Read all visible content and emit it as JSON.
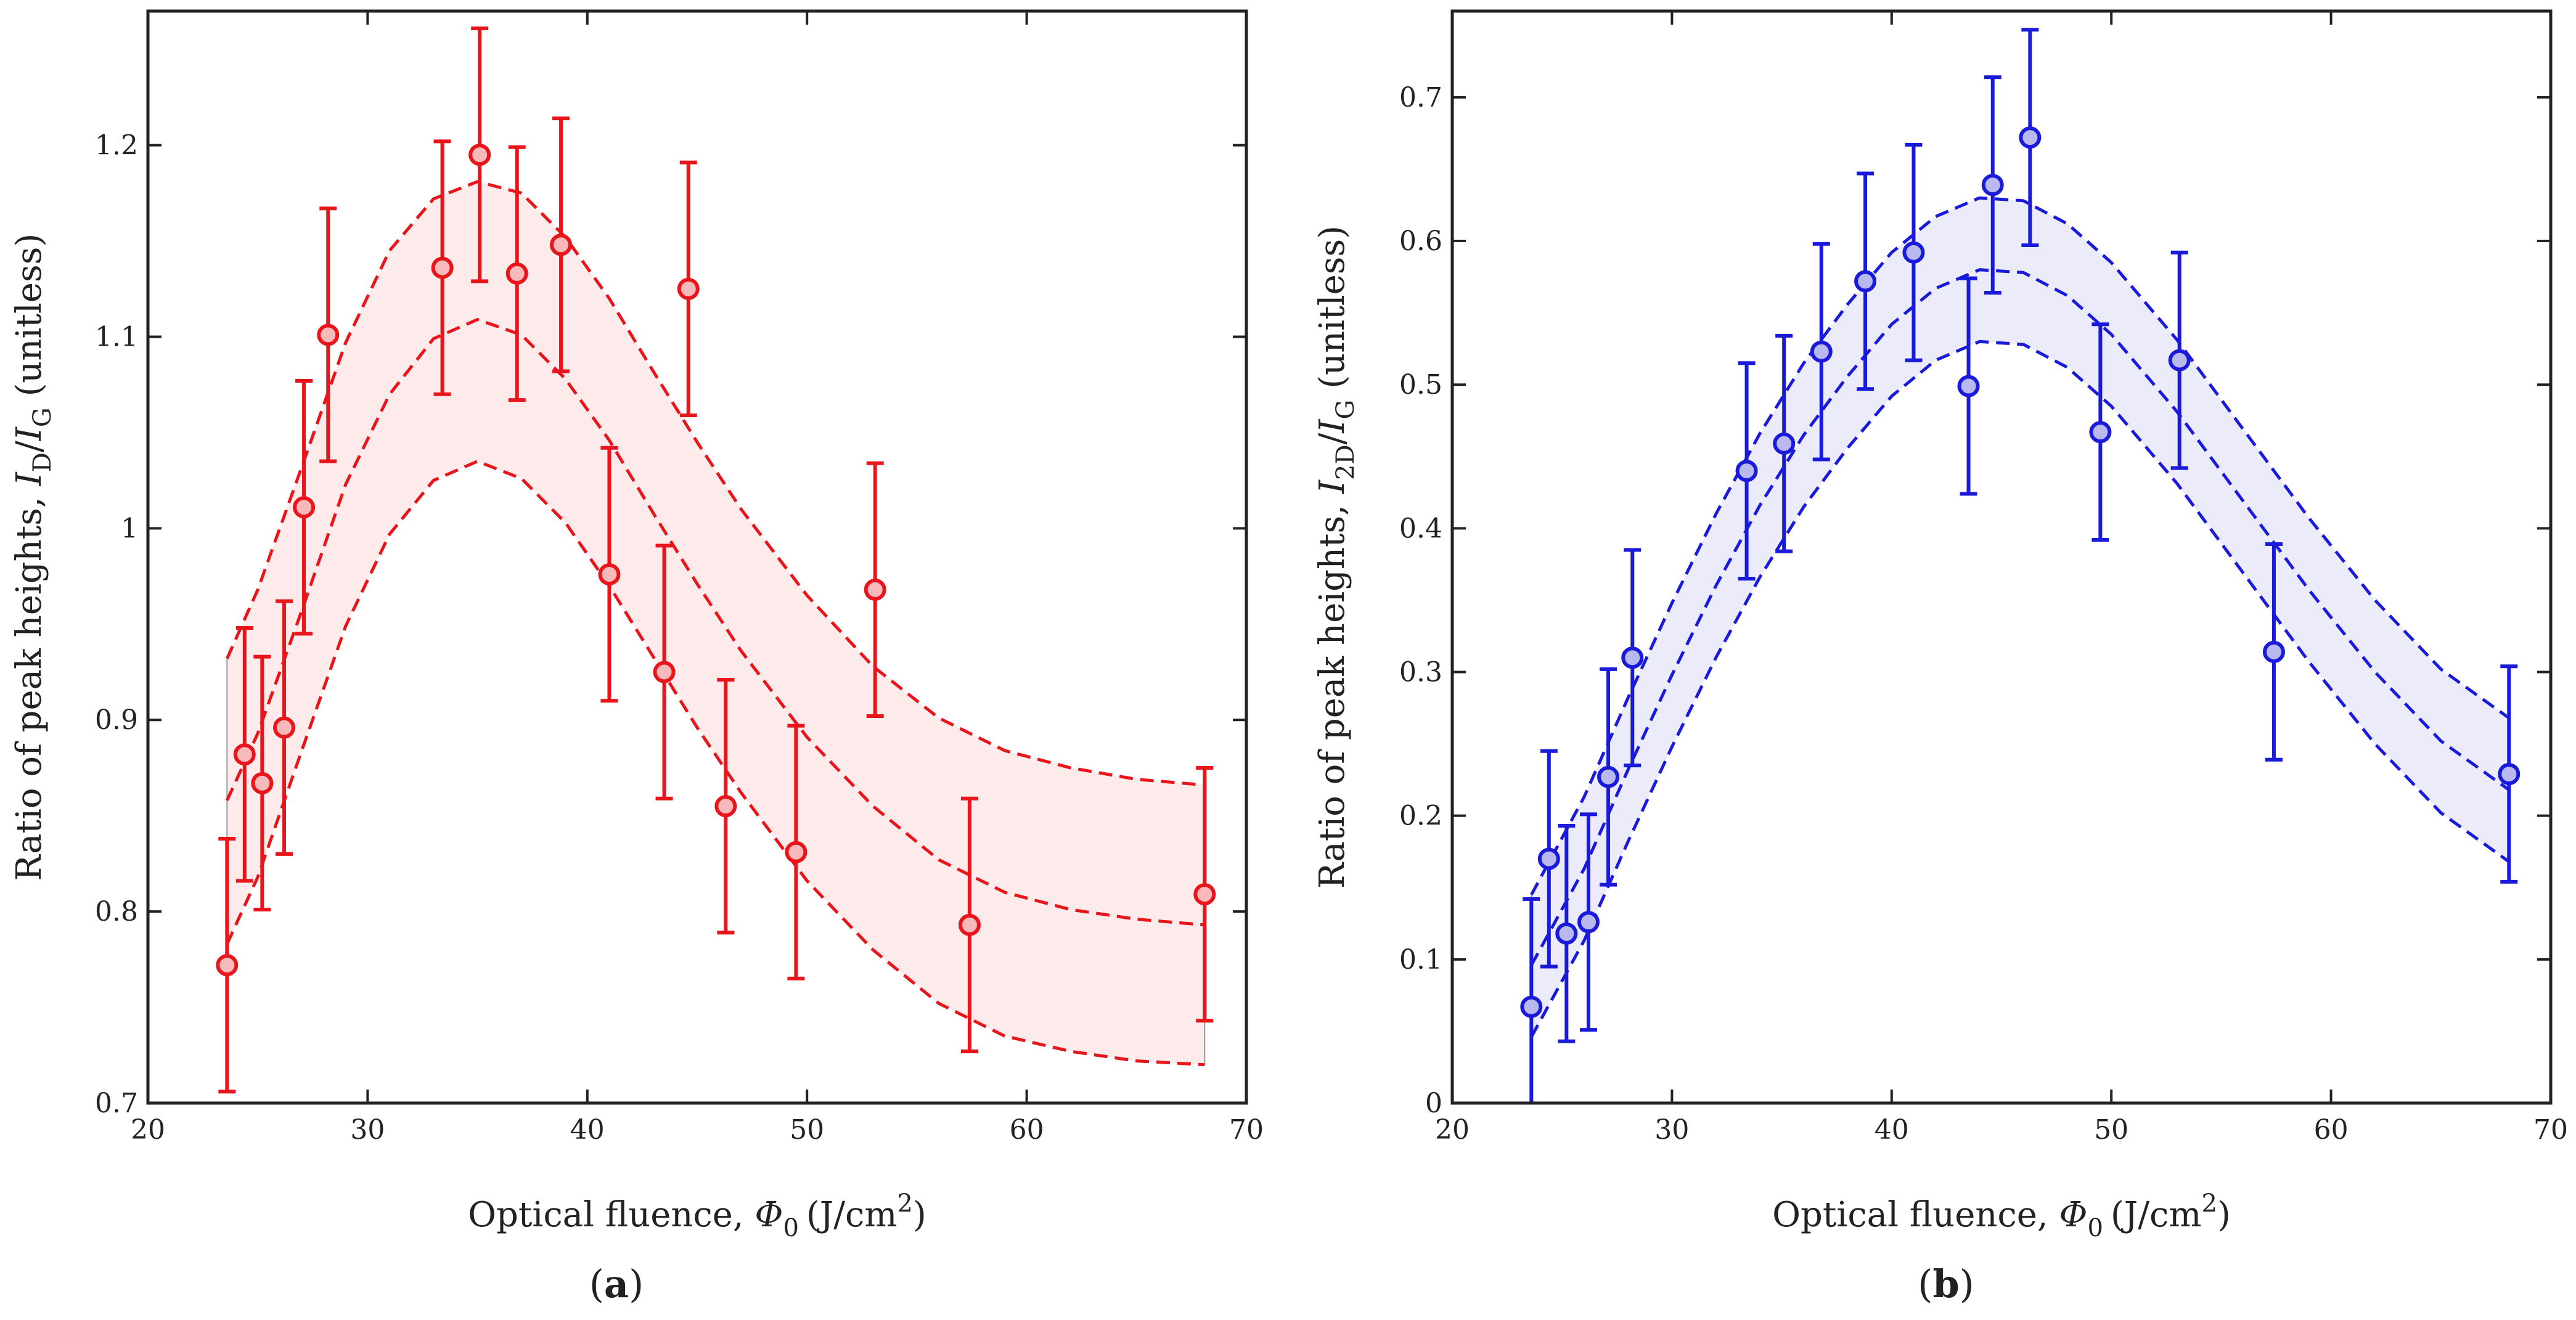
{
  "chart_data": [
    {
      "type": "scatter",
      "panel_label": "a",
      "color": "#e8151b",
      "band_fill": "#fdeaea",
      "xlabel": {
        "text": "Optical fluence, ",
        "symbol": "Φ",
        "symbol_sub": "0",
        "unit": "(J/cm",
        "unit_sup": "2",
        "unit_close": ")"
      },
      "ylabel": {
        "text": "Ratio of peak heights, ",
        "num": "I",
        "num_sub": "D",
        "slash": "/",
        "den": "I",
        "den_sub": "G",
        "suffix": " (unitless)"
      },
      "xlim": [
        20,
        70
      ],
      "ylim": [
        0.7,
        1.27
      ],
      "xticks": [
        20,
        30,
        40,
        50,
        60,
        70
      ],
      "xtick_labels": [
        "20",
        "30",
        "40",
        "50",
        "60",
        "70"
      ],
      "yticks": [
        0.7,
        0.8,
        0.9,
        1.0,
        1.1,
        1.2
      ],
      "ytick_labels": [
        "0.7",
        "0.8",
        "0.9",
        "1",
        "1.1",
        "1.2"
      ],
      "points": [
        {
          "x": 23.6,
          "y": 0.772,
          "err": 0.066
        },
        {
          "x": 24.4,
          "y": 0.882,
          "err": 0.066
        },
        {
          "x": 25.2,
          "y": 0.867,
          "err": 0.066
        },
        {
          "x": 26.2,
          "y": 0.896,
          "err": 0.066
        },
        {
          "x": 27.1,
          "y": 1.011,
          "err": 0.066
        },
        {
          "x": 28.2,
          "y": 1.101,
          "err": 0.066
        },
        {
          "x": 33.4,
          "y": 1.136,
          "err": 0.066
        },
        {
          "x": 35.1,
          "y": 1.195,
          "err": 0.066
        },
        {
          "x": 36.8,
          "y": 1.133,
          "err": 0.066
        },
        {
          "x": 38.8,
          "y": 1.148,
          "err": 0.066
        },
        {
          "x": 41.0,
          "y": 0.976,
          "err": 0.066
        },
        {
          "x": 43.5,
          "y": 0.925,
          "err": 0.066
        },
        {
          "x": 44.6,
          "y": 1.125,
          "err": 0.066
        },
        {
          "x": 46.3,
          "y": 0.855,
          "err": 0.066
        },
        {
          "x": 49.5,
          "y": 0.831,
          "err": 0.066
        },
        {
          "x": 53.1,
          "y": 0.968,
          "err": 0.066
        },
        {
          "x": 57.4,
          "y": 0.793,
          "err": 0.066
        },
        {
          "x": 68.1,
          "y": 0.809,
          "err": 0.066
        }
      ],
      "fit": {
        "x": [
          23.6,
          25,
          27,
          29,
          31,
          33,
          35,
          37,
          39,
          41,
          43,
          45,
          47,
          50,
          53,
          56,
          59,
          62,
          65,
          68.1
        ],
        "upper": [
          0.932,
          0.968,
          1.032,
          1.097,
          1.145,
          1.172,
          1.181,
          1.175,
          1.152,
          1.12,
          1.082,
          1.045,
          1.01,
          0.965,
          0.928,
          0.901,
          0.884,
          0.875,
          0.869,
          0.866
        ],
        "middle": [
          0.858,
          0.893,
          0.957,
          1.023,
          1.07,
          1.099,
          1.109,
          1.101,
          1.078,
          1.046,
          1.008,
          0.971,
          0.936,
          0.891,
          0.855,
          0.827,
          0.81,
          0.801,
          0.796,
          0.793
        ],
        "lower": [
          0.783,
          0.818,
          0.884,
          0.949,
          0.997,
          1.025,
          1.035,
          1.026,
          1.003,
          0.97,
          0.933,
          0.896,
          0.862,
          0.816,
          0.78,
          0.752,
          0.735,
          0.727,
          0.722,
          0.72
        ]
      }
    },
    {
      "type": "scatter",
      "panel_label": "b",
      "color": "#1a1adb",
      "band_fill": "#ebebfa",
      "xlabel": {
        "text": "Optical fluence, ",
        "symbol": "Φ",
        "symbol_sub": "0",
        "unit": "(J/cm",
        "unit_sup": "2",
        "unit_close": ")"
      },
      "ylabel": {
        "text": "Ratio of peak heights, ",
        "num": "I",
        "num_sub": "2D",
        "slash": "/",
        "den": "I",
        "den_sub": "G",
        "suffix": " (unitless)"
      },
      "xlim": [
        20,
        70
      ],
      "ylim": [
        0,
        0.76
      ],
      "xticks": [
        20,
        30,
        40,
        50,
        60,
        70
      ],
      "xtick_labels": [
        "20",
        "30",
        "40",
        "50",
        "60",
        "70"
      ],
      "yticks": [
        0,
        0.1,
        0.2,
        0.3,
        0.4,
        0.5,
        0.6,
        0.7
      ],
      "ytick_labels": [
        "0",
        "0.1",
        "0.2",
        "0.3",
        "0.4",
        "0.5",
        "0.6",
        "0.7"
      ],
      "points": [
        {
          "x": 23.6,
          "y": 0.067,
          "err": 0.075
        },
        {
          "x": 24.4,
          "y": 0.17,
          "err": 0.075
        },
        {
          "x": 25.2,
          "y": 0.118,
          "err": 0.075
        },
        {
          "x": 26.2,
          "y": 0.126,
          "err": 0.075
        },
        {
          "x": 27.1,
          "y": 0.227,
          "err": 0.075
        },
        {
          "x": 28.2,
          "y": 0.31,
          "err": 0.075
        },
        {
          "x": 33.4,
          "y": 0.44,
          "err": 0.075
        },
        {
          "x": 35.1,
          "y": 0.459,
          "err": 0.075
        },
        {
          "x": 36.8,
          "y": 0.523,
          "err": 0.075
        },
        {
          "x": 38.8,
          "y": 0.572,
          "err": 0.075
        },
        {
          "x": 41.0,
          "y": 0.592,
          "err": 0.075
        },
        {
          "x": 43.5,
          "y": 0.499,
          "err": 0.075
        },
        {
          "x": 44.6,
          "y": 0.639,
          "err": 0.075
        },
        {
          "x": 46.3,
          "y": 0.672,
          "err": 0.075
        },
        {
          "x": 49.5,
          "y": 0.467,
          "err": 0.075
        },
        {
          "x": 53.1,
          "y": 0.517,
          "err": 0.075
        },
        {
          "x": 57.4,
          "y": 0.314,
          "err": 0.075
        },
        {
          "x": 68.1,
          "y": 0.229,
          "err": 0.075
        }
      ],
      "fit": {
        "x": [
          23.6,
          26,
          28,
          30,
          32,
          34,
          36,
          38,
          40,
          42,
          44,
          46,
          48,
          50,
          53,
          56,
          59,
          62,
          65,
          68.1
        ],
        "upper": [
          0.145,
          0.213,
          0.282,
          0.348,
          0.41,
          0.466,
          0.515,
          0.556,
          0.592,
          0.617,
          0.63,
          0.628,
          0.612,
          0.585,
          0.531,
          0.469,
          0.407,
          0.35,
          0.302,
          0.268
        ],
        "middle": [
          0.096,
          0.163,
          0.232,
          0.298,
          0.36,
          0.416,
          0.465,
          0.506,
          0.542,
          0.567,
          0.58,
          0.578,
          0.562,
          0.535,
          0.481,
          0.419,
          0.357,
          0.3,
          0.252,
          0.218
        ],
        "lower": [
          0.046,
          0.113,
          0.182,
          0.248,
          0.31,
          0.366,
          0.415,
          0.456,
          0.492,
          0.517,
          0.53,
          0.528,
          0.512,
          0.485,
          0.431,
          0.369,
          0.307,
          0.25,
          0.202,
          0.168
        ]
      }
    }
  ]
}
